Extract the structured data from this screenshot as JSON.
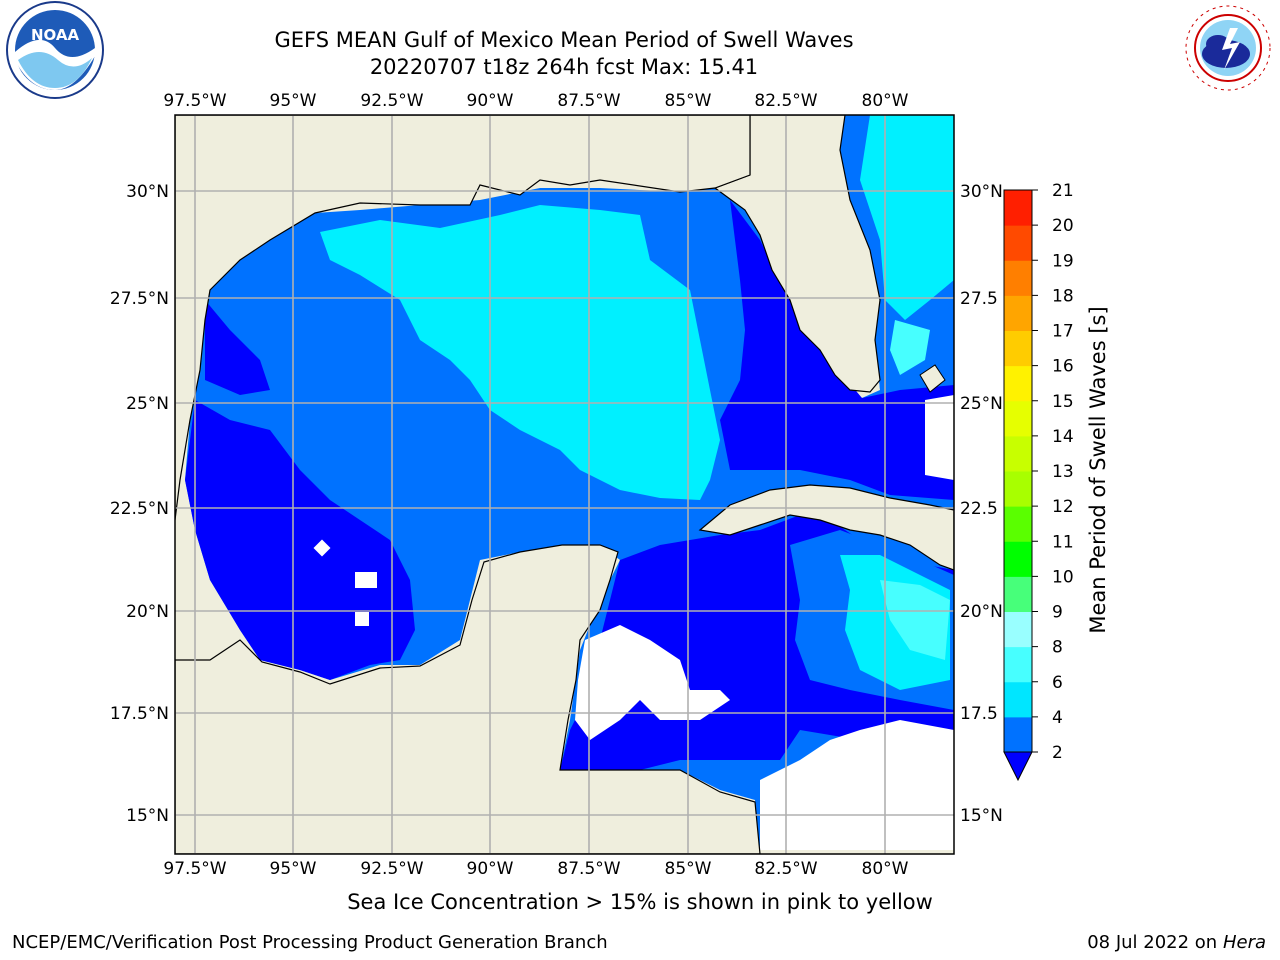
{
  "title": {
    "line1": "GEFS MEAN Gulf of Mexico Mean Period of Swell Waves",
    "line2": "20220707 t18z 264h fcst   Max: 15.41"
  },
  "axes": {
    "lon_labels": [
      "97.5°W",
      "95°W",
      "92.5°W",
      "90°W",
      "87.5°W",
      "85°W",
      "82.5°W",
      "80°W"
    ],
    "lat_labels_left": [
      "30°N",
      "27.5°N",
      "25°N",
      "22.5°N",
      "20°N",
      "17.5°N",
      "15°N"
    ],
    "lat_labels_right": [
      "30°N",
      "27.5",
      "25°N",
      "22.5",
      "20°N",
      "17.5",
      "15°N"
    ]
  },
  "colorbar": {
    "label": "Mean Period of Swell Waves [s]",
    "ticks": [
      "2",
      "4",
      "6",
      "8",
      "9",
      "10",
      "11",
      "12",
      "13",
      "14",
      "15",
      "16",
      "17",
      "18",
      "19",
      "20",
      "21"
    ],
    "colors": [
      "#0000ff",
      "#0072ff",
      "#00e6ff",
      "#47ffff",
      "#99ffff",
      "#47ff7a",
      "#00ff00",
      "#5aff00",
      "#a8ff00",
      "#c8ff00",
      "#e6ff00",
      "#fff200",
      "#ffcc00",
      "#ffa500",
      "#ff7f00",
      "#ff4a00",
      "#ff1f00",
      "#ff0000"
    ]
  },
  "map_colors": {
    "land": "#efeedd",
    "grid": "#b0b0b0",
    "nodata": "#ffffff"
  },
  "logos": {
    "left": "noaa-logo",
    "right": "nws-logo"
  },
  "subtitle": "Sea Ice Concentration > 15% is shown in pink to yellow",
  "footer": {
    "left": "NCEP/EMC/Verification Post Processing Product Generation Branch",
    "date": "08 Jul 2022 on ",
    "host": "Hera"
  }
}
